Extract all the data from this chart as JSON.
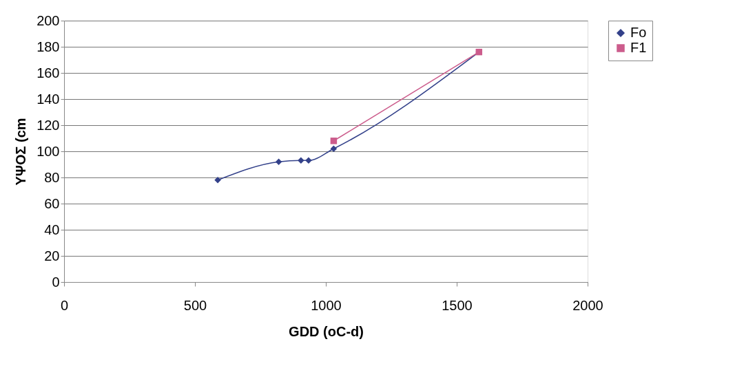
{
  "chart_data": {
    "type": "line",
    "xlabel": "GDD (oC-d)",
    "ylabel": "ΥΨΟΣ (cm",
    "series": [
      {
        "name": "Fo",
        "color": "#33418a",
        "marker": "diamond",
        "x": [
          587,
          820,
          905,
          934,
          1030,
          1585
        ],
        "values": [
          78,
          92,
          93,
          93,
          102,
          176
        ]
      },
      {
        "name": "F1",
        "color": "#cc5c8c",
        "marker": "square",
        "x": [
          1030,
          1585
        ],
        "values": [
          108,
          176
        ]
      }
    ],
    "xlim": [
      0,
      2000
    ],
    "xticks": [
      0,
      500,
      1000,
      1500,
      2000
    ],
    "ylim": [
      0,
      200
    ],
    "yticks": [
      0,
      20,
      40,
      60,
      80,
      100,
      120,
      140,
      160,
      180,
      200
    ],
    "grid": "y",
    "legend": "right",
    "line_style": "solid"
  }
}
